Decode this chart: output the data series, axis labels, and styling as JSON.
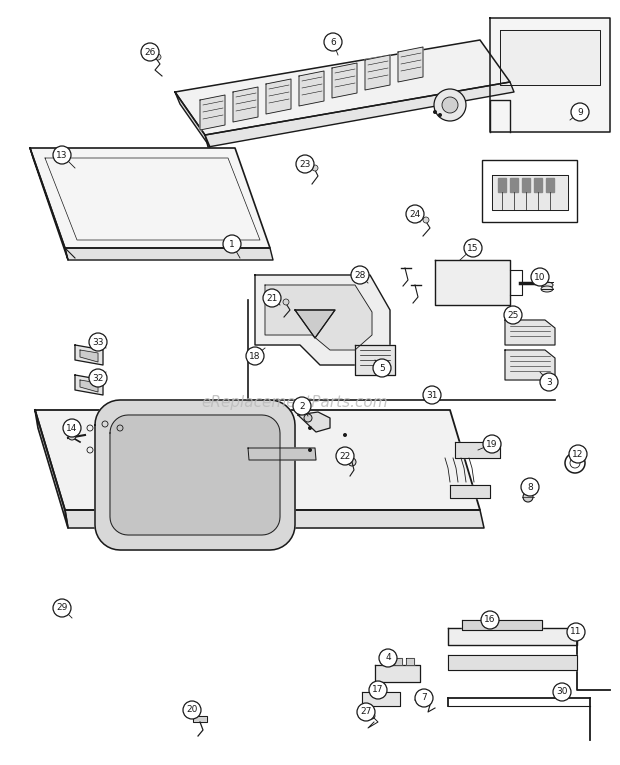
{
  "bg_color": "#ffffff",
  "line_color": "#1a1a1a",
  "watermark": "eReplacementParts.com",
  "watermark_color": "#bbbbbb",
  "watermark_fontsize": 11,
  "figw": 6.2,
  "figh": 7.65,
  "dpi": 100
}
